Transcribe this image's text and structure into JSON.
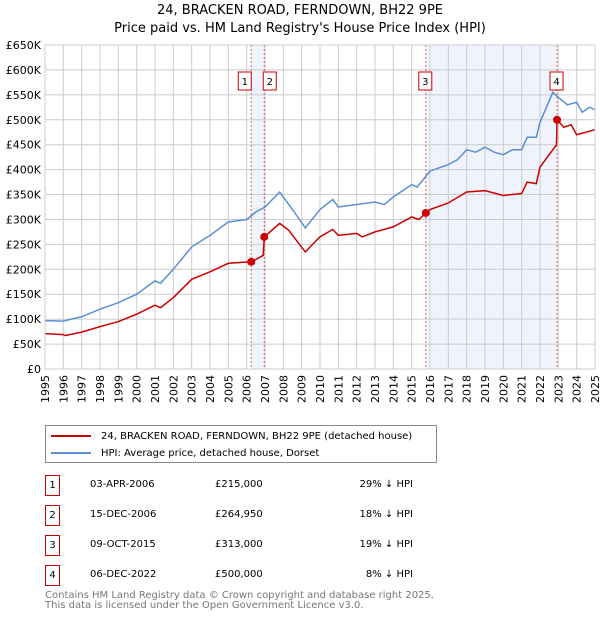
{
  "chart_data": {
    "type": "line",
    "title": "24, BRACKEN ROAD, FERNDOWN, BH22 9PE",
    "subtitle": "Price paid vs. HM Land Registry's House Price Index (HPI)",
    "xlim": [
      1995,
      2025
    ],
    "ylim": [
      0,
      650000
    ],
    "yticks": [
      {
        "v": 0,
        "label": "£0"
      },
      {
        "v": 50000,
        "label": "£50K"
      },
      {
        "v": 100000,
        "label": "£100K"
      },
      {
        "v": 150000,
        "label": "£150K"
      },
      {
        "v": 200000,
        "label": "£200K"
      },
      {
        "v": 250000,
        "label": "£250K"
      },
      {
        "v": 300000,
        "label": "£300K"
      },
      {
        "v": 350000,
        "label": "£350K"
      },
      {
        "v": 400000,
        "label": "£400K"
      },
      {
        "v": 450000,
        "label": "£450K"
      },
      {
        "v": 500000,
        "label": "£500K"
      },
      {
        "v": 550000,
        "label": "£550K"
      },
      {
        "v": 600000,
        "label": "£600K"
      },
      {
        "v": 650000,
        "label": "£650K"
      }
    ],
    "xticks": [
      "1995",
      "1996",
      "1997",
      "1998",
      "1999",
      "2000",
      "2001",
      "2002",
      "2003",
      "2004",
      "2005",
      "2006",
      "2007",
      "2008",
      "2009",
      "2010",
      "2011",
      "2012",
      "2013",
      "2014",
      "2015",
      "2016",
      "2017",
      "2018",
      "2019",
      "2020",
      "2021",
      "2022",
      "2023",
      "2024",
      "2025"
    ],
    "grid": true,
    "series": [
      {
        "name": "24, BRACKEN ROAD, FERNDOWN, BH22 9PE (detached house)",
        "color": "#cc0000",
        "x": [
          1995,
          1996,
          1996.1,
          1997,
          1998,
          1999,
          2000,
          2001,
          2001.3,
          2002,
          2003,
          2004,
          2005,
          2006.25,
          2006.9,
          2006.96,
          2007.8,
          2008.3,
          2009.2,
          2010,
          2010.7,
          2011,
          2012,
          2012.3,
          2013,
          2014,
          2015,
          2015.4,
          2015.77,
          2016,
          2017,
          2018,
          2019,
          2020,
          2021,
          2021.3,
          2021.8,
          2022,
          2022.9,
          2022.93,
          2023.3,
          2023.7,
          2024,
          2025
        ],
        "y": [
          71000,
          69000,
          67000,
          74000,
          85000,
          95000,
          110000,
          128000,
          123000,
          143000,
          180000,
          195000,
          212000,
          215000,
          228000,
          264950,
          292000,
          278000,
          235000,
          265000,
          280000,
          268000,
          272000,
          265000,
          275000,
          285000,
          305000,
          300000,
          313000,
          320000,
          333000,
          355000,
          358000,
          348000,
          352000,
          375000,
          372000,
          405000,
          450000,
          500000,
          485000,
          490000,
          470000,
          480000
        ]
      },
      {
        "name": "HPI: Average price, detached house, Dorset",
        "color": "#5b8fd4",
        "x": [
          1995,
          1996,
          1997,
          1998,
          1999,
          2000,
          2001,
          2001.3,
          2002,
          2003,
          2004,
          2005,
          2006,
          2006.5,
          2007,
          2007.8,
          2008.5,
          2009.2,
          2010,
          2010.7,
          2011,
          2012,
          2013,
          2013.5,
          2014,
          2015,
          2015.3,
          2016,
          2017,
          2017.5,
          2018,
          2018.5,
          2019,
          2019.5,
          2020,
          2020.5,
          2021,
          2021.3,
          2021.8,
          2022,
          2022.7,
          2023,
          2023.5,
          2024,
          2024.3,
          2024.7,
          2025
        ],
        "y": [
          97000,
          96000,
          105000,
          120000,
          133000,
          150000,
          177000,
          172000,
          200000,
          245000,
          268000,
          295000,
          300000,
          315000,
          325000,
          355000,
          320000,
          283000,
          320000,
          340000,
          325000,
          330000,
          335000,
          330000,
          345000,
          370000,
          365000,
          397000,
          410000,
          420000,
          440000,
          435000,
          445000,
          435000,
          430000,
          440000,
          440000,
          465000,
          465000,
          495000,
          555000,
          545000,
          530000,
          535000,
          515000,
          525000,
          520000
        ]
      }
    ],
    "shaded_ranges": [
      [
        2006.25,
        2006.96
      ],
      [
        2015.77,
        2022.93
      ]
    ],
    "annotations": [
      {
        "label": "1",
        "x": 2006.25,
        "date": "03-APR-2006",
        "price": "£215,000",
        "hpi": "29% ↓ HPI",
        "value": 215000
      },
      {
        "label": "2",
        "x": 2006.96,
        "date": "15-DEC-2006",
        "price": "£264,950",
        "hpi": "18% ↓ HPI",
        "value": 264950
      },
      {
        "label": "3",
        "x": 2015.77,
        "date": "09-OCT-2015",
        "price": "£313,000",
        "hpi": "19% ↓ HPI",
        "value": 313000
      },
      {
        "label": "4",
        "x": 2022.93,
        "date": "06-DEC-2022",
        "price": "£500,000",
        "hpi": "8% ↓ HPI",
        "value": 500000
      }
    ],
    "legend": "below"
  },
  "footer": {
    "line1": "Contains HM Land Registry data © Crown copyright and database right 2025.",
    "line2": "This data is licensed under the Open Government Licence v3.0."
  }
}
